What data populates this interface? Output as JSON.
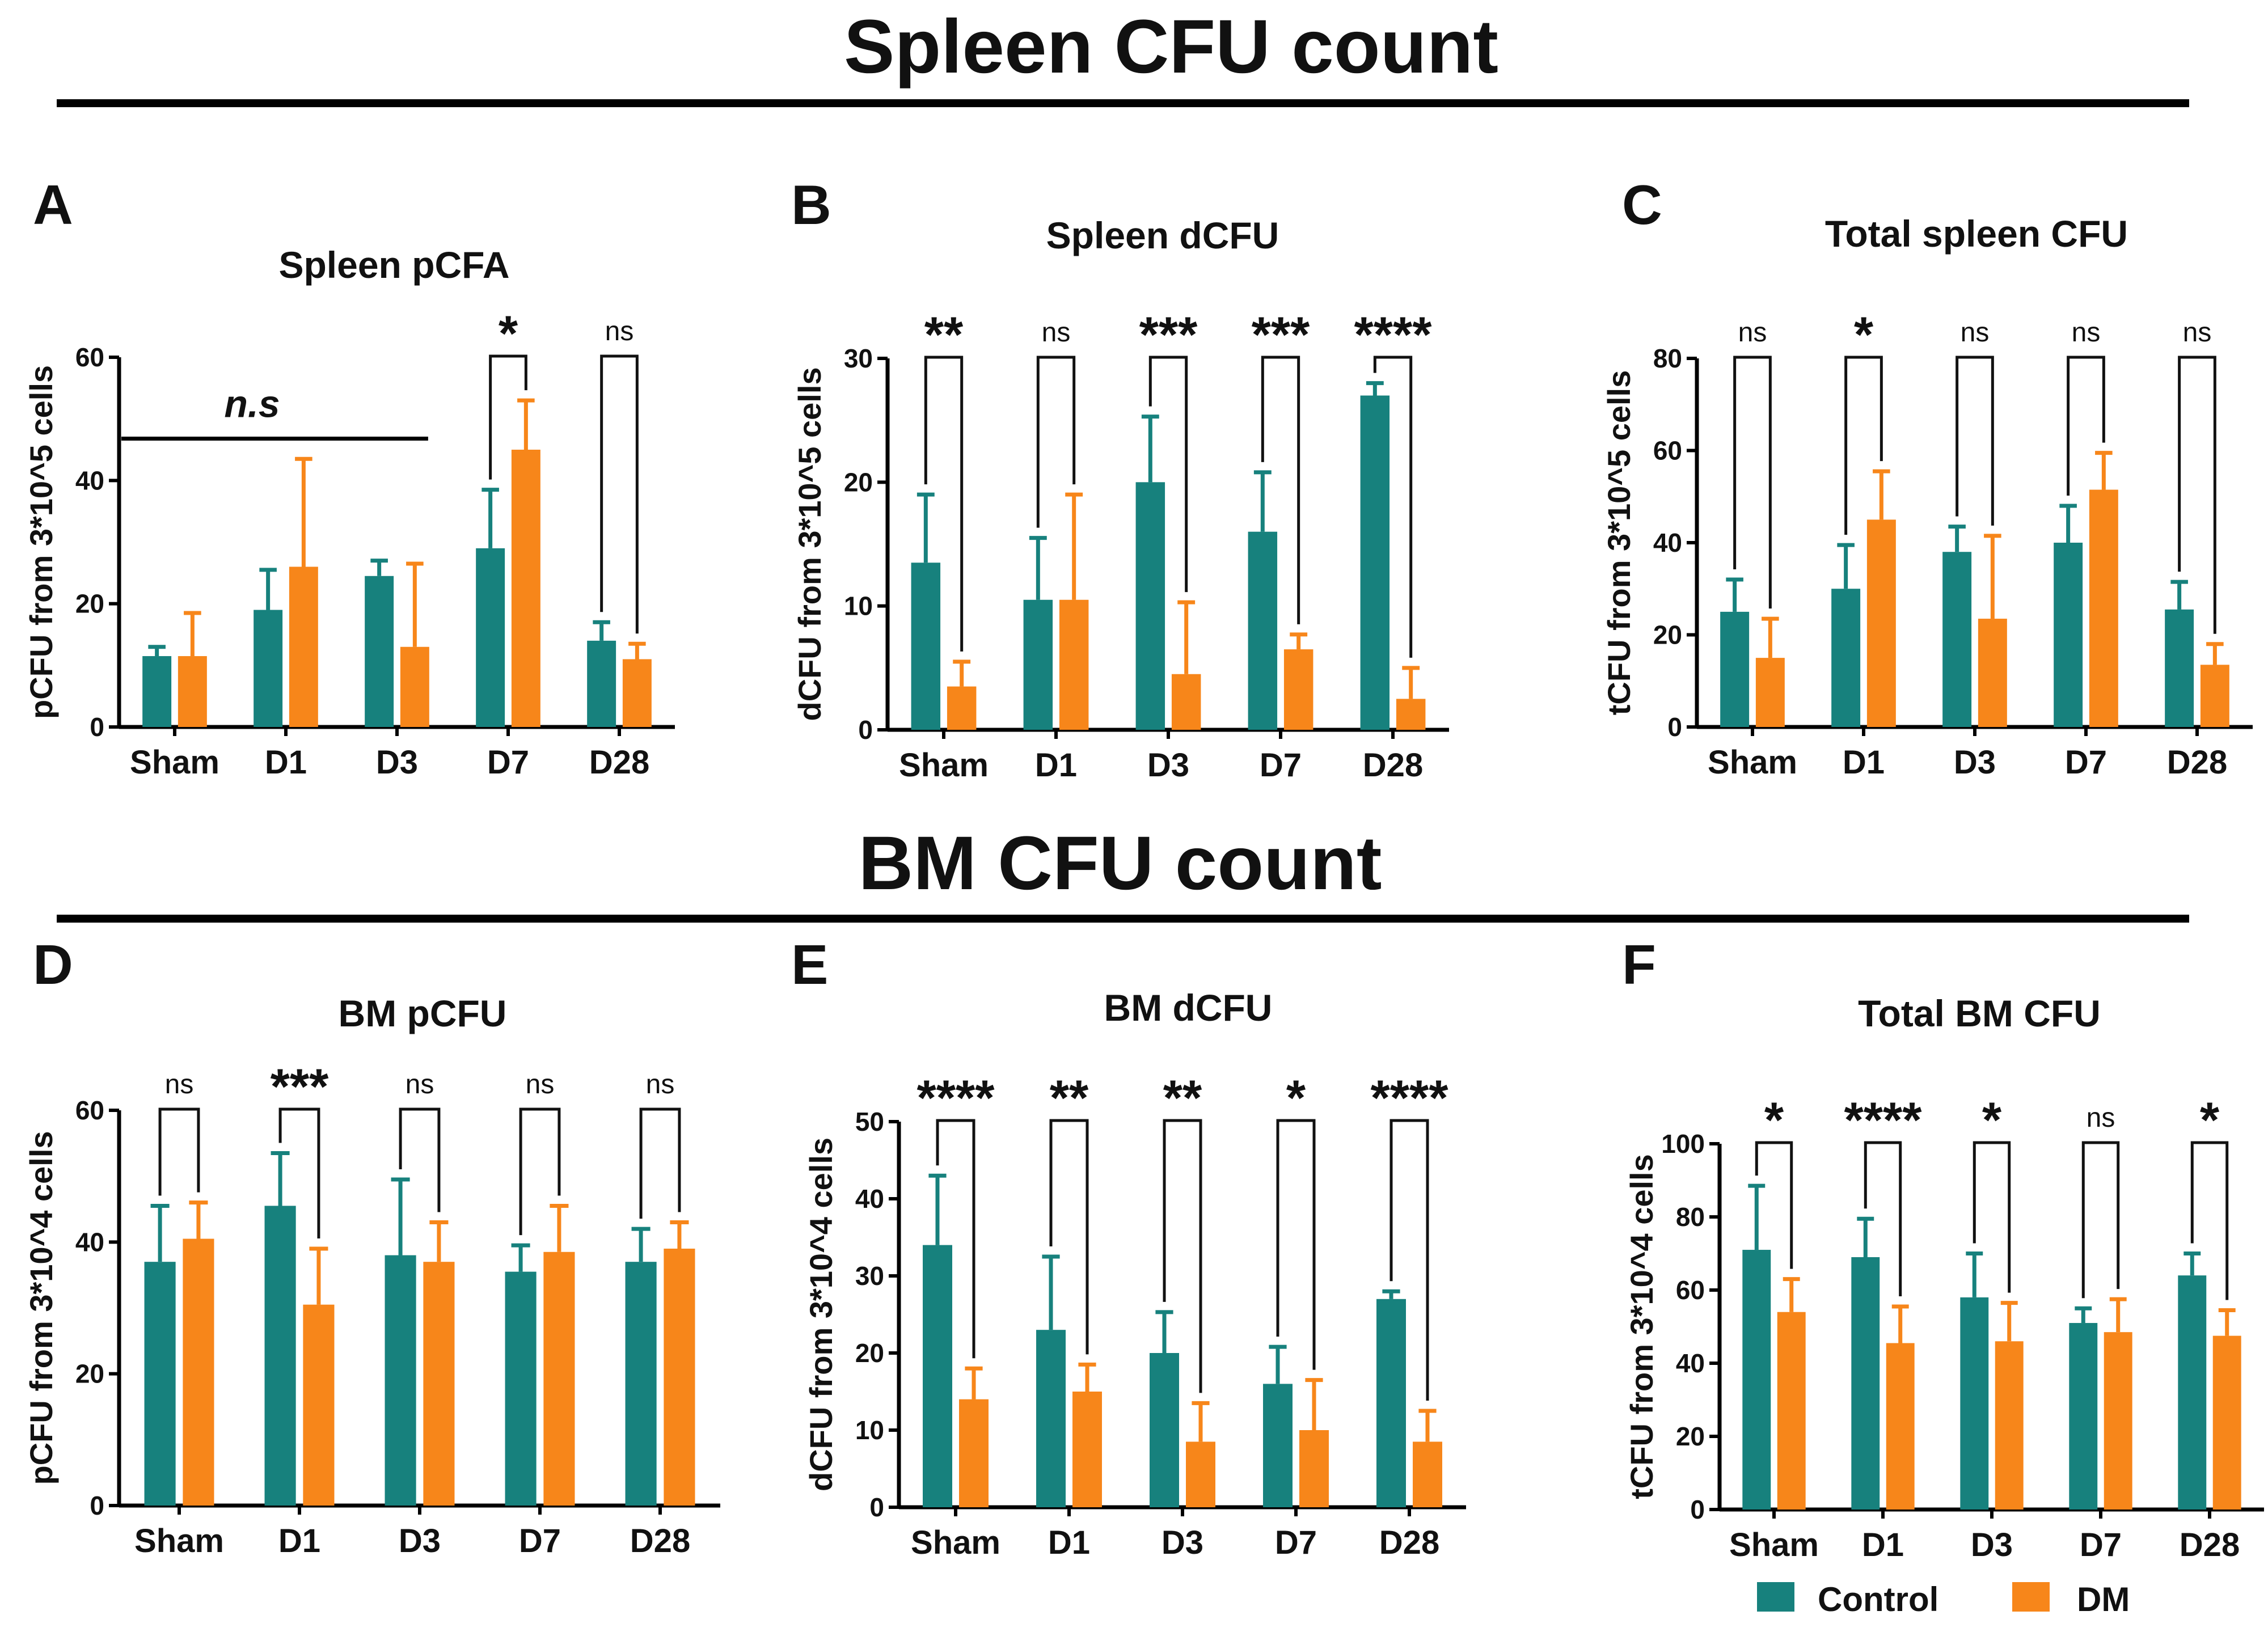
{
  "sections": [
    {
      "id": "spleen",
      "title": "Spleen CFU count"
    },
    {
      "id": "bm",
      "title": "BM CFU count"
    }
  ],
  "legend": [
    {
      "label": "Control",
      "color": "#17817d"
    },
    {
      "label": "DM",
      "color": "#f7861a"
    }
  ],
  "chart_data": [
    {
      "panel": "A",
      "type": "bar",
      "title": "Spleen pCFA",
      "xlabel": "",
      "ylabel": "pCFU from 3*10^5 cells",
      "categories": [
        "Sham",
        "D1",
        "D3",
        "D7",
        "D28"
      ],
      "ylim": [
        0,
        60
      ],
      "yticks": [
        0,
        20,
        40,
        60
      ],
      "series": [
        {
          "name": "Control",
          "values": [
            11.5,
            19,
            24.5,
            29,
            14
          ],
          "errors": [
            1.5,
            6.5,
            2.5,
            9.5,
            3
          ]
        },
        {
          "name": "DM",
          "values": [
            11.5,
            26,
            13,
            45,
            11
          ],
          "errors": [
            7,
            17.5,
            13.5,
            8,
            2.5
          ]
        }
      ],
      "sig": [
        null,
        null,
        null,
        "*",
        "ns"
      ],
      "group_note": {
        "text": "n.s",
        "from": 0,
        "to": 2
      }
    },
    {
      "panel": "B",
      "type": "bar",
      "title": "Spleen dCFU",
      "xlabel": "",
      "ylabel": "dCFU from 3*10^5 cells",
      "categories": [
        "Sham",
        "D1",
        "D3",
        "D7",
        "D28"
      ],
      "ylim": [
        0,
        30
      ],
      "yticks": [
        0,
        10,
        20,
        30
      ],
      "series": [
        {
          "name": "Control",
          "values": [
            13.5,
            10.5,
            20,
            16,
            27
          ],
          "errors": [
            5.5,
            5,
            5.3,
            4.8,
            1
          ]
        },
        {
          "name": "DM",
          "values": [
            3.5,
            10.5,
            4.5,
            6.5,
            2.5
          ],
          "errors": [
            2,
            8.5,
            5.8,
            1.2,
            2.5
          ]
        }
      ],
      "sig": [
        "**",
        "ns",
        "***",
        "***",
        "****"
      ]
    },
    {
      "panel": "C",
      "type": "bar",
      "title": "Total spleen CFU",
      "xlabel": "",
      "ylabel": "tCFU from 3*10^5 cells",
      "categories": [
        "Sham",
        "D1",
        "D3",
        "D7",
        "D28"
      ],
      "ylim": [
        0,
        80
      ],
      "yticks": [
        0,
        20,
        40,
        60,
        80
      ],
      "series": [
        {
          "name": "Control",
          "values": [
            25,
            30,
            38,
            40,
            25.5
          ],
          "errors": [
            7,
            9.5,
            5.5,
            8,
            6
          ]
        },
        {
          "name": "DM",
          "values": [
            15,
            45,
            23.5,
            51.5,
            13.5
          ],
          "errors": [
            8.5,
            10.5,
            18,
            8,
            4.5
          ]
        }
      ],
      "sig": [
        "ns",
        "*",
        "ns",
        "ns",
        "ns"
      ]
    },
    {
      "panel": "D",
      "type": "bar",
      "title": "BM pCFU",
      "xlabel": "",
      "ylabel": "pCFU from 3*10^4 cells",
      "categories": [
        "Sham",
        "D1",
        "D3",
        "D7",
        "D28"
      ],
      "ylim": [
        0,
        60
      ],
      "yticks": [
        0,
        20,
        40,
        60
      ],
      "series": [
        {
          "name": "Control",
          "values": [
            37,
            45.5,
            38,
            35.5,
            37
          ],
          "errors": [
            8.5,
            8,
            11.5,
            4,
            5
          ]
        },
        {
          "name": "DM",
          "values": [
            40.5,
            30.5,
            37,
            38.5,
            39
          ],
          "errors": [
            5.5,
            8.5,
            6,
            7,
            4
          ]
        }
      ],
      "sig": [
        "ns",
        "***",
        "ns",
        "ns",
        "ns"
      ]
    },
    {
      "panel": "E",
      "type": "bar",
      "title": "BM dCFU",
      "xlabel": "",
      "ylabel": "dCFU from 3*10^4 cells",
      "categories": [
        "Sham",
        "D1",
        "D3",
        "D7",
        "D28"
      ],
      "ylim": [
        0,
        50
      ],
      "yticks": [
        0,
        10,
        20,
        30,
        40,
        50
      ],
      "series": [
        {
          "name": "Control",
          "values": [
            34,
            23,
            20,
            16,
            27
          ],
          "errors": [
            9,
            9.5,
            5.3,
            4.8,
            1
          ]
        },
        {
          "name": "DM",
          "values": [
            14,
            15,
            8.5,
            10,
            8.5
          ],
          "errors": [
            4,
            3.5,
            5,
            6.5,
            4
          ]
        }
      ],
      "sig": [
        "****",
        "**",
        "**",
        "*",
        "****"
      ]
    },
    {
      "panel": "F",
      "type": "bar",
      "title": "Total BM CFU",
      "xlabel": "",
      "ylabel": "tCFU from 3*10^4 cells",
      "categories": [
        "Sham",
        "D1",
        "D3",
        "D7",
        "D28"
      ],
      "ylim": [
        0,
        100
      ],
      "yticks": [
        0,
        20,
        40,
        60,
        80,
        100
      ],
      "series": [
        {
          "name": "Control",
          "values": [
            71,
            69,
            58,
            51,
            64
          ],
          "errors": [
            17.5,
            10.5,
            12,
            4,
            6
          ]
        },
        {
          "name": "DM",
          "values": [
            54,
            45.5,
            46,
            48.5,
            47.5
          ],
          "errors": [
            9,
            10,
            10.5,
            9,
            7
          ]
        }
      ],
      "sig": [
        "*",
        "****",
        "*",
        "ns",
        "*"
      ]
    }
  ]
}
